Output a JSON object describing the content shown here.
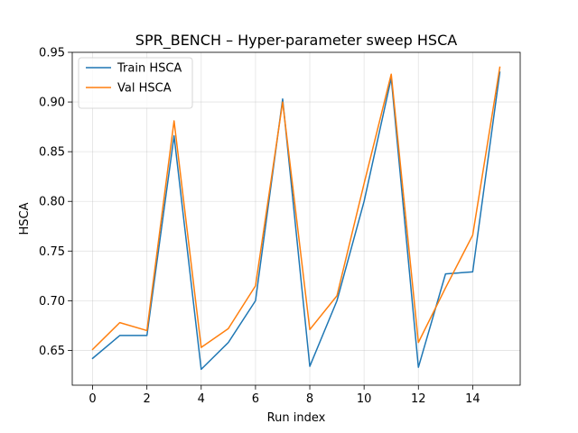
{
  "chart_data": {
    "type": "line",
    "title": "SPR_BENCH – Hyper-parameter sweep HSCA",
    "xlabel": "Run index",
    "ylabel": "HSCA",
    "xlim": [
      -0.75,
      15.75
    ],
    "ylim": [
      0.615,
      0.95
    ],
    "xticks": [
      0,
      2,
      4,
      6,
      8,
      10,
      12,
      14
    ],
    "yticks": [
      0.65,
      0.7,
      0.75,
      0.8,
      0.85,
      0.9,
      0.95
    ],
    "grid": true,
    "legend_position": "top-left",
    "x": [
      0,
      1,
      2,
      3,
      4,
      5,
      6,
      7,
      8,
      9,
      10,
      11,
      12,
      13,
      14,
      15
    ],
    "series": [
      {
        "name": "Train HSCA",
        "color": "#1f77b4",
        "values": [
          0.642,
          0.665,
          0.665,
          0.866,
          0.631,
          0.658,
          0.7,
          0.903,
          0.634,
          0.7,
          0.8,
          0.924,
          0.633,
          0.727,
          0.729,
          0.93
        ]
      },
      {
        "name": "Val HSCA",
        "color": "#ff7f0e",
        "values": [
          0.651,
          0.678,
          0.67,
          0.881,
          0.653,
          0.672,
          0.715,
          0.9,
          0.671,
          0.705,
          0.818,
          0.928,
          0.658,
          0.713,
          0.766,
          0.935
        ]
      }
    ]
  }
}
